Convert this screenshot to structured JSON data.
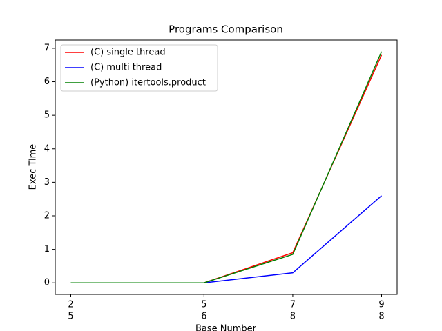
{
  "chart_data": {
    "type": "line",
    "title": "Programs Comparison",
    "x_label": "Base Number",
    "y_label": "Exec Time",
    "x": [
      2,
      5,
      7,
      9
    ],
    "series": [
      {
        "name": "(C) single thread",
        "color": "#ff0000",
        "values": [
          0,
          0,
          0.9,
          6.8
        ]
      },
      {
        "name": "(C) multi thread",
        "color": "#0000ff",
        "values": [
          0,
          0,
          0.3,
          2.6
        ]
      },
      {
        "name": "(Python) itertools.product",
        "color": "#008000",
        "values": [
          0,
          0,
          0.85,
          6.9
        ]
      }
    ],
    "xlim": [
      1.65,
      9.35
    ],
    "xticks": [
      {
        "value": 2,
        "label": [
          "2",
          "5"
        ]
      },
      {
        "value": 5,
        "label": [
          "5",
          "6"
        ]
      },
      {
        "value": 7,
        "label": [
          "7",
          "8"
        ]
      },
      {
        "value": 9,
        "label": [
          "9",
          "8"
        ]
      }
    ],
    "ylim": [
      -0.345,
      7.245
    ],
    "yticks": [
      0,
      1,
      2,
      3,
      4,
      5,
      6,
      7
    ],
    "legend": "upper-left",
    "grid": false
  }
}
